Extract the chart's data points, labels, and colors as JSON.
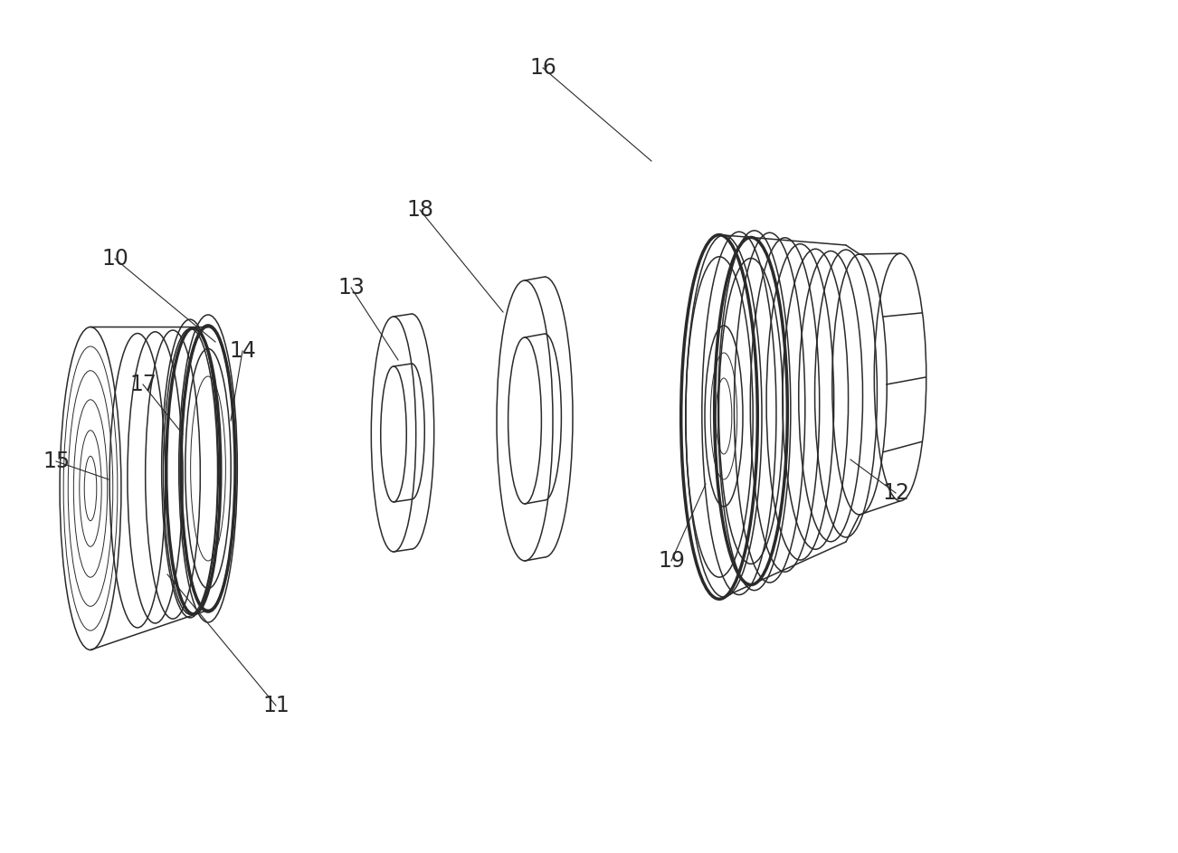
{
  "bg_color": "#ffffff",
  "line_color": "#2a2a2a",
  "lw_thin": 0.7,
  "lw_med": 1.1,
  "lw_thick": 2.5,
  "figsize": [
    13.02,
    9.43
  ],
  "dpi": 100,
  "label_fontsize": 17
}
